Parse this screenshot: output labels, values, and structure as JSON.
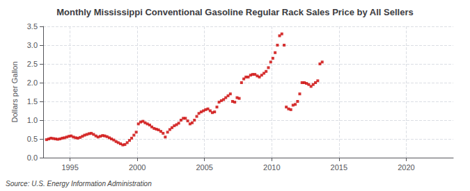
{
  "chart_data": {
    "type": "scatter",
    "title": "Monthly Mississippi Conventional Gasoline Regular Rack Sales Price by All Sellers",
    "ylabel": "Dollars per Gallon",
    "source": "Source: U.S. Energy Information Administration",
    "color": "#cc0000",
    "marker": "square",
    "grid": true,
    "xlim": [
      1993.0,
      2023.5
    ],
    "xticks": [
      1995,
      2000,
      2005,
      2010,
      2015,
      2020
    ],
    "ylim": [
      0.0,
      3.5
    ],
    "yticks": [
      {
        "value": 0.0,
        "label": "0.0"
      },
      0.5,
      {
        "value": 1.0,
        "label": "1.0"
      },
      1.5,
      {
        "value": 2.0,
        "label": "2.0"
      },
      2.5,
      {
        "value": 3.0,
        "label": "3.0"
      },
      3.5
    ],
    "x": [
      1993.25,
      1993.42,
      1993.58,
      1993.75,
      1993.92,
      1994.08,
      1994.25,
      1994.42,
      1994.58,
      1994.75,
      1994.92,
      1995.08,
      1995.25,
      1995.42,
      1995.58,
      1995.75,
      1995.92,
      1996.08,
      1996.25,
      1996.42,
      1996.58,
      1996.75,
      1996.92,
      1997.08,
      1997.25,
      1997.42,
      1997.58,
      1997.75,
      1997.92,
      1998.08,
      1998.25,
      1998.42,
      1998.58,
      1998.75,
      1998.92,
      1999.08,
      1999.25,
      1999.42,
      1999.58,
      1999.75,
      1999.92,
      2000.08,
      2000.25,
      2000.42,
      2000.58,
      2000.75,
      2000.92,
      2001.08,
      2001.25,
      2001.42,
      2001.58,
      2001.75,
      2001.92,
      2002.08,
      2002.25,
      2002.42,
      2002.58,
      2002.75,
      2002.92,
      2003.08,
      2003.25,
      2003.42,
      2003.58,
      2003.75,
      2003.92,
      2004.08,
      2004.25,
      2004.42,
      2004.58,
      2004.75,
      2004.92,
      2005.08,
      2005.25,
      2005.42,
      2005.58,
      2005.75,
      2005.92,
      2006.08,
      2006.25,
      2006.42,
      2006.58,
      2006.75,
      2006.92,
      2007.08,
      2007.25,
      2007.42,
      2007.58,
      2007.75,
      2007.92,
      2008.08,
      2008.25,
      2008.42,
      2008.58,
      2008.75,
      2008.92,
      2009.08,
      2009.25,
      2009.42,
      2009.58,
      2009.75,
      2009.92,
      2010.08,
      2010.25,
      2010.42,
      2010.58,
      2010.75,
      2010.92,
      2011.08,
      2011.25,
      2011.42,
      2011.58,
      2011.75,
      2011.92,
      2012.08,
      2012.25,
      2012.42,
      2012.58,
      2012.75,
      2012.92,
      2013.08,
      2013.25,
      2013.42,
      2013.58,
      2013.75
    ],
    "values": [
      0.48,
      0.5,
      0.52,
      0.51,
      0.5,
      0.49,
      0.5,
      0.52,
      0.53,
      0.55,
      0.57,
      0.58,
      0.55,
      0.53,
      0.52,
      0.54,
      0.57,
      0.6,
      0.62,
      0.64,
      0.65,
      0.62,
      0.58,
      0.55,
      0.57,
      0.59,
      0.58,
      0.56,
      0.53,
      0.5,
      0.47,
      0.43,
      0.4,
      0.37,
      0.34,
      0.35,
      0.4,
      0.46,
      0.52,
      0.6,
      0.68,
      0.9,
      0.95,
      0.97,
      0.93,
      0.9,
      0.87,
      0.82,
      0.78,
      0.76,
      0.74,
      0.7,
      0.65,
      0.55,
      0.68,
      0.75,
      0.8,
      0.85,
      0.88,
      0.92,
      1.0,
      1.05,
      1.05,
      0.98,
      0.9,
      0.93,
      1.0,
      1.1,
      1.18,
      1.22,
      1.25,
      1.28,
      1.3,
      1.25,
      1.2,
      1.22,
      1.35,
      1.48,
      1.52,
      1.55,
      1.6,
      1.65,
      1.7,
      1.5,
      1.48,
      1.6,
      1.58,
      2.0,
      2.1,
      2.15,
      2.15,
      2.2,
      2.22,
      2.22,
      2.18,
      2.15,
      2.2,
      2.25,
      2.3,
      2.4,
      2.55,
      2.65,
      2.8,
      3.0,
      3.25,
      3.3,
      3.0,
      1.35,
      1.3,
      1.28,
      1.4,
      1.42,
      1.5,
      1.7,
      2.0,
      2.0,
      1.98,
      1.95,
      1.9,
      1.95,
      2.0,
      2.05,
      2.5,
      2.55
    ]
  }
}
